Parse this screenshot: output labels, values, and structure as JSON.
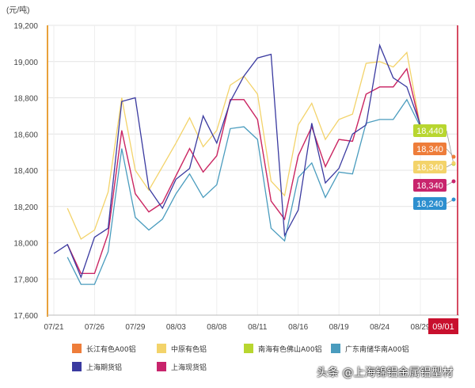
{
  "chart_data": {
    "type": "line",
    "unit_label": "(元/吨)",
    "ylim": [
      17600,
      19200
    ],
    "yticks": [
      17600,
      17800,
      18000,
      18200,
      18400,
      18600,
      18800,
      19000,
      19200
    ],
    "ytick_labels": [
      "17,600",
      "17,800",
      "18,000",
      "18,200",
      "18,400",
      "18,600",
      "18,800",
      "19,000",
      "19,200"
    ],
    "x_tick_labels": [
      "07/21",
      "07/26",
      "07/29",
      "08/03",
      "08/08",
      "08/11",
      "08/16",
      "08/19",
      "08/24",
      "08/29"
    ],
    "x_tick_index": [
      0,
      3,
      6,
      9,
      12,
      15,
      18,
      21,
      24,
      27
    ],
    "x_cursor_label": "09/01",
    "grid": true,
    "legend_position": "bottom",
    "series": [
      {
        "name": "长江有色A00铝",
        "color": "#ee7d3a",
        "values": [
          null,
          17990,
          17830,
          17830,
          18050,
          18620,
          18270,
          18170,
          18220,
          18370,
          18520,
          18390,
          18480,
          18790,
          18790,
          18680,
          18230,
          18130,
          18480,
          18640,
          18420,
          18570,
          18560,
          18820,
          18860,
          18860,
          18960,
          18640
        ]
      },
      {
        "name": "中原有色铝",
        "color": "#f3d36a",
        "values": [
          null,
          18190,
          18020,
          18070,
          18280,
          18800,
          18400,
          18290,
          18420,
          18550,
          18690,
          18530,
          18620,
          18870,
          18920,
          18820,
          18340,
          18260,
          18650,
          18770,
          18570,
          18680,
          18710,
          18990,
          19000,
          18970,
          19050,
          18640
        ]
      },
      {
        "name": "南海有色佛山A00铝",
        "color": "#b8d630",
        "values": [
          null,
          null,
          null,
          null,
          null,
          null,
          null,
          null,
          null,
          null,
          null,
          null,
          null,
          null,
          null,
          null,
          null,
          null,
          null,
          null,
          null,
          null,
          null,
          null,
          null,
          null,
          null,
          18640
        ]
      },
      {
        "name": "广东南储华南A00铝",
        "color": "#4a9cbe",
        "values": [
          null,
          17920,
          17770,
          17770,
          17950,
          18520,
          18140,
          18070,
          18130,
          18270,
          18380,
          18250,
          18320,
          18630,
          18640,
          18570,
          18080,
          18010,
          18360,
          18440,
          18250,
          18390,
          18380,
          18660,
          18680,
          18680,
          18790,
          18640
        ]
      },
      {
        "name": "上海期货铝",
        "color": "#3a3aa0",
        "values": [
          17940,
          17990,
          17810,
          18030,
          18080,
          18780,
          18800,
          18300,
          18190,
          18350,
          18410,
          18700,
          18550,
          18780,
          18920,
          19020,
          19040,
          18040,
          18180,
          18660,
          18330,
          18410,
          18600,
          18650,
          19090,
          18910,
          18860,
          18650
        ]
      },
      {
        "name": "上海现货铝",
        "color": "#c8246c",
        "values": [
          null,
          17990,
          17830,
          17830,
          18050,
          18620,
          18270,
          18170,
          18220,
          18370,
          18520,
          18390,
          18480,
          18790,
          18790,
          18680,
          18230,
          18130,
          18480,
          18640,
          18420,
          18570,
          18560,
          18820,
          18860,
          18860,
          18960,
          18640
        ]
      }
    ],
    "end_labels": [
      {
        "text": "18,440",
        "color": "#b8d630"
      },
      {
        "text": "18,340",
        "color": "#ee7d3a"
      },
      {
        "text": "18,340",
        "color": "#f3d36a"
      },
      {
        "text": "18,340",
        "color": "#c8246c"
      },
      {
        "text": "18,240",
        "color": "#2d8fcf"
      }
    ]
  },
  "watermark": "头条 @上海锦铝金属铝型材"
}
